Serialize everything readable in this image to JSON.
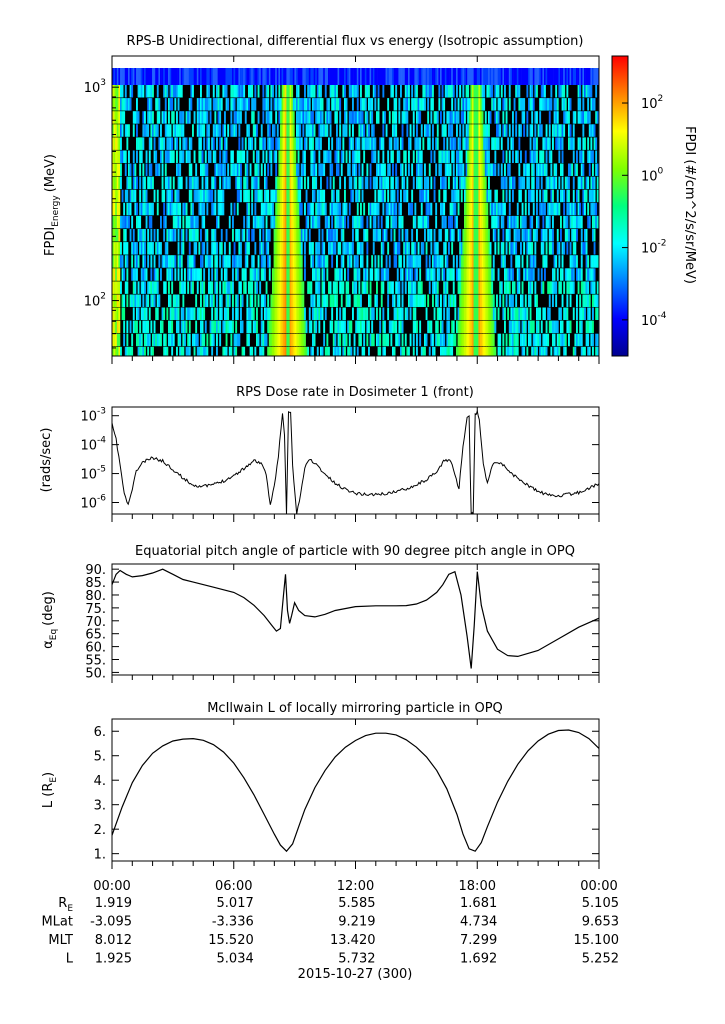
{
  "chart_data": [
    {
      "type": "heatmap",
      "title": "RPS-B  Unidirectional, differential flux vs energy (Isotropic assumption)",
      "ylabel": "FPDI",
      "ylabel_sub": "Energy",
      "ylabel_unit": "(MeV)",
      "yscale": "log",
      "ylim": [
        55,
        1400
      ],
      "y_ticks": [
        {
          "value": 100,
          "base": "10",
          "exp": "2"
        },
        {
          "value": 1000,
          "base": "10",
          "exp": "3"
        }
      ],
      "xlim": [
        0,
        24
      ],
      "colorbar": {
        "label": "FPDI (#/cm^2/s/sr/MeV)",
        "scale": "log",
        "range": [
          1e-05,
          2000
        ],
        "ticks": [
          {
            "value": 0.0001,
            "base": "10",
            "exp": "-4"
          },
          {
            "value": 0.01,
            "base": "10",
            "exp": "-2"
          },
          {
            "value": 1,
            "base": "10",
            "exp": "0"
          },
          {
            "value": 100,
            "base": "10",
            "exp": "2"
          }
        ],
        "colors": [
          "#00008f",
          "#0000ff",
          "#0080ff",
          "#00ffff",
          "#00ff80",
          "#80ff00",
          "#ffff00",
          "#ff8000",
          "#ff0000"
        ]
      },
      "band_centers_hours": [
        8.6,
        17.9
      ],
      "background_color": "#000000"
    },
    {
      "type": "line",
      "title": "RPS  Dose rate in Dosimeter 1 (front)",
      "ylabel": "(rads/sec)",
      "yscale": "log",
      "ylim": [
        4e-07,
        0.002
      ],
      "y_ticks": [
        {
          "value": 1e-06,
          "base": "10",
          "exp": "-6"
        },
        {
          "value": 1e-05,
          "base": "10",
          "exp": "-5"
        },
        {
          "value": 0.0001,
          "base": "10",
          "exp": "-4"
        },
        {
          "value": 0.001,
          "base": "10",
          "exp": "-3"
        }
      ],
      "xlim": [
        0,
        24
      ],
      "x": [
        0,
        0.2,
        0.4,
        0.6,
        0.8,
        1.0,
        1.2,
        1.5,
        2.0,
        2.5,
        3.0,
        3.5,
        4.0,
        4.5,
        5.0,
        5.5,
        6.0,
        6.5,
        7.0,
        7.4,
        7.6,
        7.8,
        8.0,
        8.2,
        8.4,
        8.5,
        8.6,
        8.7,
        8.8,
        8.9,
        9.1,
        9.3,
        9.5,
        9.7,
        10.0,
        10.5,
        11.0,
        11.5,
        12.0,
        12.5,
        13.0,
        13.5,
        14.0,
        14.5,
        15.0,
        15.5,
        16.0,
        16.4,
        16.7,
        16.9,
        17.1,
        17.3,
        17.5,
        17.6,
        17.7,
        17.8,
        17.9,
        18.0,
        18.1,
        18.3,
        18.5,
        18.8,
        19.2,
        19.8,
        20.5,
        21.0,
        21.5,
        22.0,
        22.5,
        23.0,
        23.5,
        24.0
      ],
      "y": [
        0.0005,
        0.00015,
        2e-05,
        2e-06,
        8e-07,
        3e-06,
        1.2e-05,
        2.4e-05,
        3.5e-05,
        2.7e-05,
        1.4e-05,
        7e-06,
        4e-06,
        3.6e-06,
        4.2e-06,
        5.6e-06,
        8.5e-06,
        1.5e-05,
        2.8e-05,
        2.2e-05,
        8e-06,
        8e-07,
        4e-06,
        4e-05,
        0.0012,
        0.0002,
        4e-07,
        0.0013,
        0.0013,
        2e-05,
        4e-07,
        2e-06,
        1.5e-05,
        3.2e-05,
        2.3e-05,
        9.5e-06,
        4.5e-06,
        2.9e-06,
        2.1e-06,
        1.9e-06,
        1.9e-06,
        2e-06,
        2.4e-06,
        3e-06,
        4.1e-06,
        6.2e-06,
        1.1e-05,
        3e-05,
        2.8e-05,
        9e-06,
        3e-06,
        9e-05,
        0.0008,
        0.0009,
        4e-07,
        4e-07,
        0.0012,
        0.0013,
        0.0008,
        2e-05,
        5e-06,
        2.5e-05,
        2.2e-05,
        8.7e-06,
        3.9e-06,
        2.4e-06,
        1.8e-06,
        1.7e-06,
        1.9e-06,
        2.2e-06,
        3.1e-06,
        4.5e-06
      ],
      "line_color": "#000000"
    },
    {
      "type": "line",
      "title": "Equatorial pitch angle of particle with 90 degree pitch angle in OPQ",
      "ylabel": "α",
      "ylabel_sub": "Eq",
      "ylabel_unit": "(deg)",
      "ylim": [
        49,
        92
      ],
      "y_ticks": [
        50,
        55,
        60,
        65,
        70,
        75,
        80,
        85,
        90
      ],
      "y_tick_labels": [
        "50.",
        "55.",
        "60.",
        "65.",
        "70.",
        "75.",
        "80.",
        "85.",
        "90."
      ],
      "xlim": [
        0,
        24
      ],
      "x": [
        0,
        0.2,
        0.4,
        0.7,
        1.0,
        1.5,
        2.0,
        2.5,
        3.0,
        3.5,
        4.0,
        5.0,
        6.0,
        6.5,
        7.0,
        7.5,
        7.9,
        8.1,
        8.3,
        8.45,
        8.55,
        8.65,
        8.75,
        8.85,
        9.0,
        9.2,
        9.5,
        10.0,
        10.5,
        11.0,
        12.0,
        13.0,
        14.0,
        14.5,
        15.0,
        15.5,
        16.0,
        16.3,
        16.6,
        16.9,
        17.2,
        17.5,
        17.7,
        17.85,
        18.0,
        18.2,
        18.5,
        19.0,
        19.5,
        20.0,
        21.0,
        22.0,
        23.0,
        24.0
      ],
      "y": [
        84,
        88,
        89.5,
        88,
        87,
        87.5,
        88.5,
        90,
        88,
        86,
        85,
        83,
        81,
        79,
        76,
        72,
        68,
        66,
        67,
        80,
        88,
        74,
        69,
        72,
        77,
        74,
        72,
        71.5,
        72.5,
        74,
        75.5,
        75.8,
        75.8,
        75.9,
        76.5,
        78,
        81,
        84,
        88,
        89,
        80,
        64,
        51.5,
        68,
        89,
        76,
        66,
        59,
        56.5,
        56.2,
        58.5,
        63,
        67.5,
        71
      ]
    },
    {
      "type": "line",
      "title": "McIlwain L of locally mirroring particle in OPQ",
      "ylabel": "L (R",
      "ylabel_sub": "E",
      "ylabel_end": ")",
      "ylim": [
        0.7,
        6.5
      ],
      "y_ticks": [
        1,
        2,
        3,
        4,
        5,
        6
      ],
      "y_tick_labels": [
        "1.",
        "2.",
        "3.",
        "4.",
        "5.",
        "6."
      ],
      "xlim": [
        0,
        24
      ],
      "x": [
        0,
        0.5,
        1.0,
        1.5,
        2.0,
        2.5,
        3.0,
        3.5,
        4.0,
        4.5,
        5.0,
        5.5,
        6.0,
        6.5,
        7.0,
        7.5,
        8.0,
        8.3,
        8.6,
        8.9,
        9.2,
        9.5,
        10.0,
        10.5,
        11.0,
        11.5,
        12.0,
        12.5,
        13.0,
        13.5,
        14.0,
        14.5,
        15.0,
        15.5,
        16.0,
        16.5,
        17.0,
        17.3,
        17.6,
        17.9,
        18.2,
        18.5,
        19.0,
        19.5,
        20.0,
        20.5,
        21.0,
        21.5,
        22.0,
        22.5,
        23.0,
        23.5,
        24.0
      ],
      "y": [
        1.75,
        2.9,
        3.9,
        4.6,
        5.1,
        5.4,
        5.6,
        5.68,
        5.7,
        5.63,
        5.45,
        5.15,
        4.7,
        4.1,
        3.4,
        2.6,
        1.8,
        1.35,
        1.1,
        1.4,
        2.1,
        2.8,
        3.7,
        4.4,
        4.95,
        5.35,
        5.62,
        5.82,
        5.92,
        5.92,
        5.85,
        5.65,
        5.35,
        4.95,
        4.4,
        3.65,
        2.6,
        1.8,
        1.2,
        1.1,
        1.45,
        2.1,
        3.1,
        3.95,
        4.65,
        5.2,
        5.6,
        5.88,
        6.03,
        6.05,
        5.95,
        5.7,
        5.3
      ]
    }
  ],
  "time_axis": {
    "tick_labels": [
      "00:00",
      "06:00",
      "12:00",
      "18:00",
      "00:00"
    ],
    "tick_hours": [
      0,
      6,
      12,
      18,
      24
    ],
    "date_label": "2015-10-27 (300)",
    "ephemeris": [
      {
        "label": "R",
        "label_sub": "E",
        "values": [
          "1.919",
          "5.017",
          "5.585",
          "1.681",
          "5.105"
        ]
      },
      {
        "label": "MLat",
        "label_sub": "",
        "values": [
          "-3.095",
          "-3.336",
          "9.219",
          "4.734",
          "9.653"
        ]
      },
      {
        "label": "MLT",
        "label_sub": "",
        "values": [
          "8.012",
          "15.520",
          "13.420",
          "7.299",
          "15.100"
        ]
      },
      {
        "label": "L",
        "label_sub": "",
        "values": [
          "1.925",
          "5.034",
          "5.732",
          "1.692",
          "5.252"
        ]
      }
    ]
  }
}
